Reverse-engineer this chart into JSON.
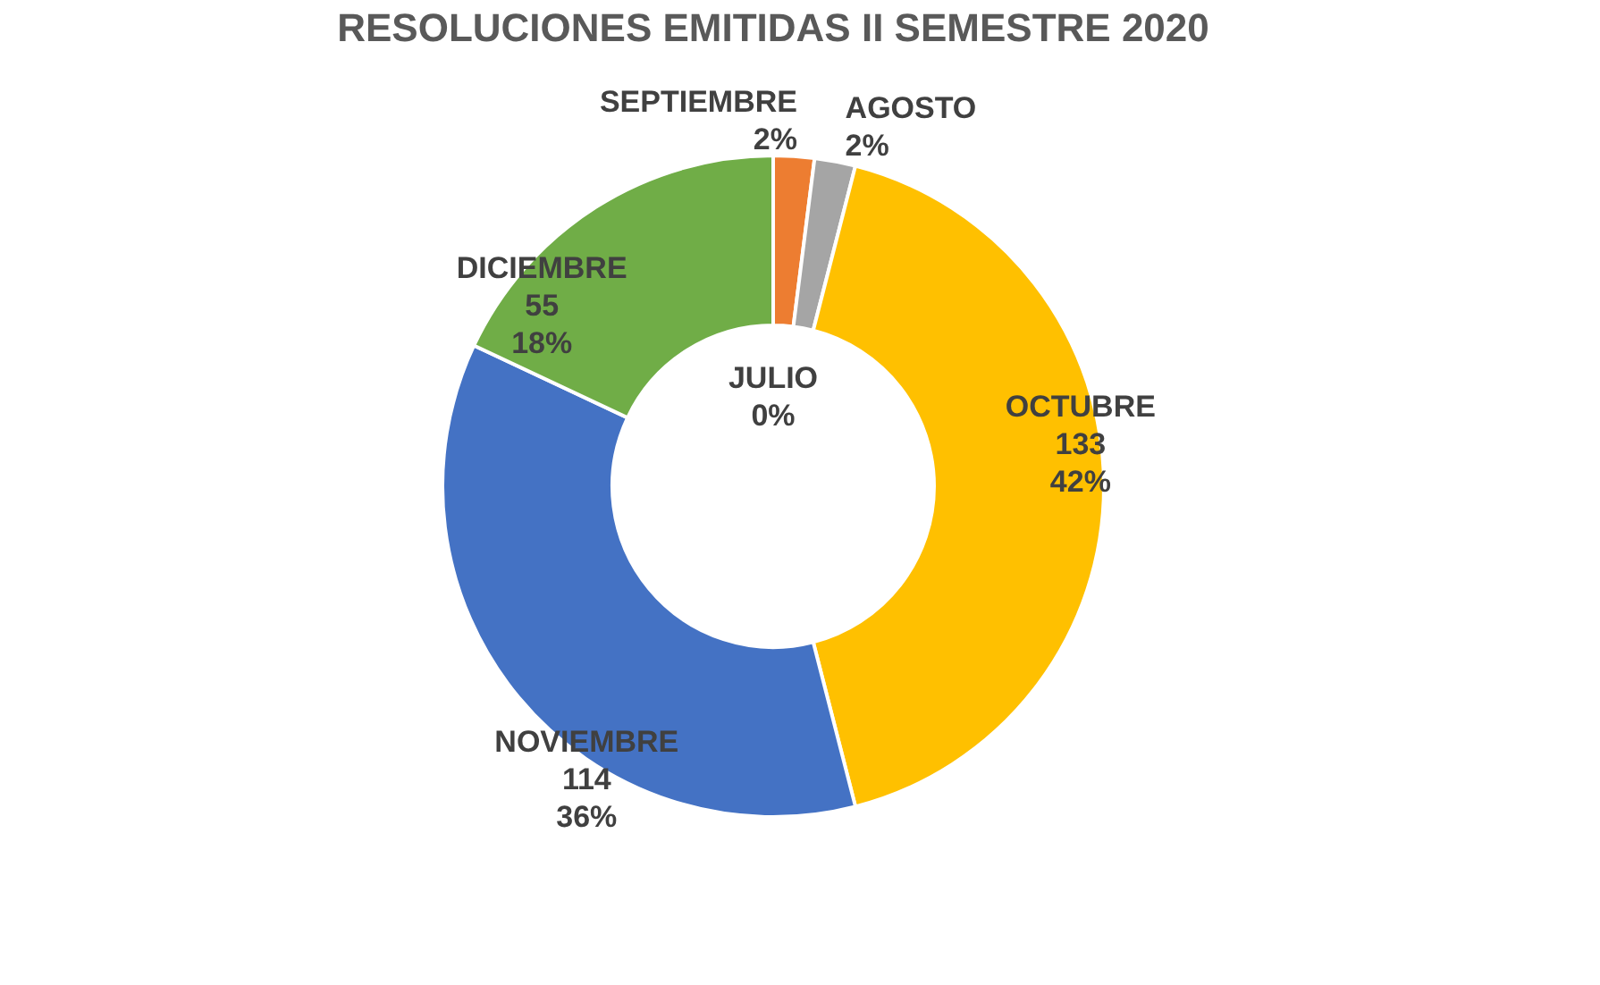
{
  "chart_data": {
    "type": "donut",
    "title": "RESOLUCIONES EMITIDAS II SEMESTRE 2020",
    "categories": [
      "JULIO",
      "SEPTIEMBRE",
      "AGOSTO",
      "OCTUBRE",
      "NOVIEMBRE",
      "DICIEMBRE"
    ],
    "values": [
      0,
      2,
      2,
      42,
      36,
      18
    ],
    "colors": [
      "#5b9bd5",
      "#ed7d31",
      "#a5a5a5",
      "#ffc000",
      "#4472c4",
      "#70ad47"
    ],
    "value_labels": [
      "0%",
      "2%",
      "2%",
      "133\n42%",
      "114\n36%",
      "55\n18%"
    ],
    "legend": false
  }
}
